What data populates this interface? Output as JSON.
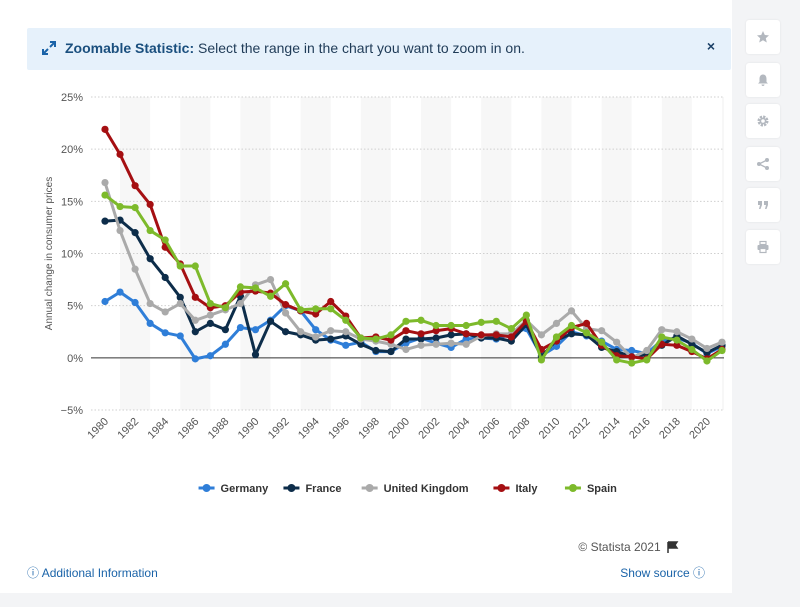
{
  "banner": {
    "title": "Zoomable Statistic:",
    "text": "Select the range in the chart you want to zoom in on.",
    "close": "×"
  },
  "footer": {
    "copyright": "© Statista 2021",
    "additional_info": "Additional Information",
    "show_source": "Show source"
  },
  "sidebar": {
    "icons": [
      "star-icon",
      "bell-icon",
      "gear-icon",
      "share-icon",
      "quote-icon",
      "print-icon"
    ]
  },
  "chart_data": {
    "type": "line",
    "ylabel": "Annual change in consumer prices",
    "xlabel": "",
    "ylim": [
      -5,
      25
    ],
    "yticks": [
      "25%",
      "20%",
      "15%",
      "10%",
      "5%",
      "0%",
      "−5%"
    ],
    "ytick_values": [
      25,
      20,
      15,
      10,
      5,
      0,
      -5
    ],
    "xticks": [
      "1980",
      "1982",
      "1984",
      "1986",
      "1988",
      "1990",
      "1992",
      "1994",
      "1996",
      "1998",
      "2000",
      "2002",
      "2004",
      "2006",
      "2008",
      "2010",
      "2012",
      "2014",
      "2016",
      "2018",
      "2020"
    ],
    "x": [
      1980,
      1981,
      1982,
      1983,
      1984,
      1985,
      1986,
      1987,
      1988,
      1989,
      1990,
      1991,
      1992,
      1993,
      1994,
      1995,
      1996,
      1997,
      1998,
      1999,
      2000,
      2001,
      2002,
      2003,
      2004,
      2005,
      2006,
      2007,
      2008,
      2009,
      2010,
      2011,
      2012,
      2013,
      2014,
      2015,
      2016,
      2017,
      2018,
      2019,
      2020,
      2021
    ],
    "grid": true,
    "legend_position": "bottom",
    "series": [
      {
        "name": "Germany",
        "color": "#2f7ed8",
        "values": [
          5.4,
          6.3,
          5.3,
          3.3,
          2.4,
          2.1,
          -0.1,
          0.2,
          1.3,
          2.9,
          2.7,
          3.6,
          5.0,
          4.5,
          2.7,
          1.7,
          1.2,
          1.5,
          0.6,
          0.6,
          1.4,
          1.9,
          1.4,
          1.0,
          1.8,
          1.9,
          1.8,
          2.3,
          2.8,
          0.2,
          1.1,
          2.5,
          2.1,
          1.6,
          0.8,
          0.7,
          0.4,
          1.7,
          1.9,
          1.4,
          0.4,
          1.1
        ]
      },
      {
        "name": "France",
        "color": "#0d2d4a",
        "values": [
          13.1,
          13.2,
          12.0,
          9.5,
          7.7,
          5.8,
          2.5,
          3.3,
          2.7,
          5.9,
          0.3,
          3.5,
          2.5,
          2.2,
          1.7,
          1.8,
          2.1,
          1.3,
          0.7,
          0.6,
          1.8,
          1.8,
          1.9,
          2.2,
          2.3,
          1.9,
          1.9,
          1.6,
          3.2,
          0.1,
          1.7,
          2.3,
          2.2,
          1.0,
          0.6,
          0.1,
          0.3,
          1.2,
          2.1,
          1.3,
          0.5,
          1.2
        ]
      },
      {
        "name": "United Kingdom",
        "color": "#aaaaaa",
        "values": [
          16.8,
          12.2,
          8.5,
          5.2,
          4.4,
          5.2,
          3.6,
          4.1,
          4.6,
          5.2,
          7.0,
          7.5,
          4.3,
          2.5,
          2.0,
          2.6,
          2.5,
          1.8,
          1.6,
          1.3,
          0.8,
          1.2,
          1.3,
          1.4,
          1.3,
          2.1,
          2.3,
          2.3,
          3.6,
          2.2,
          3.3,
          4.5,
          2.8,
          2.6,
          1.5,
          0.0,
          0.7,
          2.7,
          2.5,
          1.8,
          0.9,
          1.5
        ]
      },
      {
        "name": "Italy",
        "color": "#a50f12",
        "values": [
          21.9,
          19.5,
          16.5,
          14.7,
          10.6,
          9.0,
          5.8,
          4.8,
          5.0,
          6.3,
          6.4,
          6.2,
          5.1,
          4.5,
          4.2,
          5.4,
          4.0,
          1.9,
          2.0,
          1.7,
          2.6,
          2.3,
          2.6,
          2.8,
          2.3,
          2.2,
          2.2,
          2.0,
          3.5,
          0.8,
          1.6,
          2.9,
          3.3,
          1.2,
          0.2,
          0.1,
          -0.1,
          1.3,
          1.2,
          0.6,
          -0.1,
          0.8
        ]
      },
      {
        "name": "Spain",
        "color": "#7dba2b",
        "values": [
          15.6,
          14.5,
          14.4,
          12.2,
          11.3,
          8.8,
          8.8,
          5.2,
          4.8,
          6.8,
          6.7,
          5.9,
          7.1,
          4.6,
          4.7,
          4.7,
          3.6,
          1.9,
          1.8,
          2.2,
          3.5,
          3.6,
          3.1,
          3.1,
          3.1,
          3.4,
          3.5,
          2.8,
          4.1,
          -0.2,
          2.0,
          3.1,
          2.4,
          1.5,
          -0.2,
          -0.5,
          -0.2,
          2.0,
          1.7,
          0.8,
          -0.3,
          0.7
        ]
      }
    ]
  }
}
